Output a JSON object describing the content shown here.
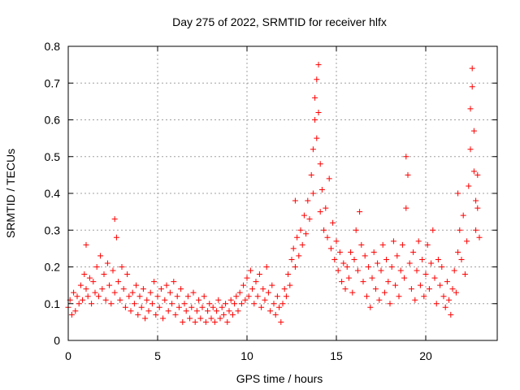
{
  "chart_data": {
    "type": "scatter",
    "title": "Day 275 of 2022, SRMTID for receiver hlfx",
    "xlabel": "GPS time / hours",
    "ylabel": "SRMTID / TECUs",
    "xlim": [
      0,
      24
    ],
    "ylim": [
      0,
      0.8
    ],
    "x_ticks": [
      0,
      5,
      10,
      15,
      20
    ],
    "x_tick_labels": [
      "0",
      "5",
      "10",
      "15",
      "20"
    ],
    "y_ticks": [
      0,
      0.1,
      0.2,
      0.3,
      0.4,
      0.5,
      0.6,
      0.7,
      0.8
    ],
    "y_tick_labels": [
      "0",
      "0.1",
      "0.2",
      "0.3",
      "0.4",
      "0.5",
      "0.6",
      "0.7",
      "0.8"
    ],
    "grid": true,
    "marker": "plus",
    "color": "#ff0000",
    "series": [
      {
        "name": "SRMTID",
        "points": [
          [
            0.0,
            0.09
          ],
          [
            0.1,
            0.11
          ],
          [
            0.2,
            0.07
          ],
          [
            0.3,
            0.13
          ],
          [
            0.4,
            0.08
          ],
          [
            0.5,
            0.12
          ],
          [
            0.6,
            0.1
          ],
          [
            0.7,
            0.15
          ],
          [
            0.8,
            0.11
          ],
          [
            0.9,
            0.18
          ],
          [
            1.0,
            0.26
          ],
          [
            1.0,
            0.14
          ],
          [
            1.1,
            0.12
          ],
          [
            1.2,
            0.17
          ],
          [
            1.3,
            0.1
          ],
          [
            1.4,
            0.16
          ],
          [
            1.5,
            0.13
          ],
          [
            1.6,
            0.2
          ],
          [
            1.7,
            0.12
          ],
          [
            1.8,
            0.23
          ],
          [
            1.9,
            0.14
          ],
          [
            2.0,
            0.18
          ],
          [
            2.1,
            0.11
          ],
          [
            2.2,
            0.21
          ],
          [
            2.3,
            0.15
          ],
          [
            2.4,
            0.1
          ],
          [
            2.5,
            0.19
          ],
          [
            2.6,
            0.13
          ],
          [
            2.6,
            0.33
          ],
          [
            2.7,
            0.28
          ],
          [
            2.8,
            0.16
          ],
          [
            2.9,
            0.11
          ],
          [
            3.0,
            0.2
          ],
          [
            3.1,
            0.14
          ],
          [
            3.2,
            0.09
          ],
          [
            3.3,
            0.18
          ],
          [
            3.4,
            0.12
          ],
          [
            3.5,
            0.08
          ],
          [
            3.6,
            0.13
          ],
          [
            3.7,
            0.1
          ],
          [
            3.8,
            0.15
          ],
          [
            3.9,
            0.07
          ],
          [
            4.0,
            0.12
          ],
          [
            4.1,
            0.09
          ],
          [
            4.2,
            0.14
          ],
          [
            4.3,
            0.06
          ],
          [
            4.4,
            0.11
          ],
          [
            4.5,
            0.08
          ],
          [
            4.6,
            0.13
          ],
          [
            4.7,
            0.1
          ],
          [
            4.8,
            0.16
          ],
          [
            4.9,
            0.07
          ],
          [
            5.0,
            0.12
          ],
          [
            5.1,
            0.09
          ],
          [
            5.2,
            0.14
          ],
          [
            5.3,
            0.06
          ],
          [
            5.4,
            0.11
          ],
          [
            5.5,
            0.15
          ],
          [
            5.6,
            0.08
          ],
          [
            5.7,
            0.13
          ],
          [
            5.8,
            0.1
          ],
          [
            5.9,
            0.16
          ],
          [
            6.0,
            0.07
          ],
          [
            6.1,
            0.12
          ],
          [
            6.2,
            0.09
          ],
          [
            6.3,
            0.14
          ],
          [
            6.4,
            0.05
          ],
          [
            6.5,
            0.1
          ],
          [
            6.6,
            0.08
          ],
          [
            6.7,
            0.12
          ],
          [
            6.8,
            0.06
          ],
          [
            6.9,
            0.09
          ],
          [
            7.0,
            0.13
          ],
          [
            7.1,
            0.05
          ],
          [
            7.2,
            0.08
          ],
          [
            7.3,
            0.11
          ],
          [
            7.4,
            0.06
          ],
          [
            7.5,
            0.09
          ],
          [
            7.6,
            0.12
          ],
          [
            7.7,
            0.05
          ],
          [
            7.8,
            0.08
          ],
          [
            7.9,
            0.1
          ],
          [
            8.0,
            0.06
          ],
          [
            8.1,
            0.09
          ],
          [
            8.2,
            0.05
          ],
          [
            8.3,
            0.08
          ],
          [
            8.4,
            0.11
          ],
          [
            8.5,
            0.06
          ],
          [
            8.6,
            0.09
          ],
          [
            8.7,
            0.07
          ],
          [
            8.8,
            0.1
          ],
          [
            8.9,
            0.05
          ],
          [
            9.0,
            0.08
          ],
          [
            9.1,
            0.11
          ],
          [
            9.2,
            0.07
          ],
          [
            9.3,
            0.1
          ],
          [
            9.4,
            0.12
          ],
          [
            9.5,
            0.08
          ],
          [
            9.6,
            0.13
          ],
          [
            9.7,
            0.1
          ],
          [
            9.8,
            0.15
          ],
          [
            9.9,
            0.11
          ],
          [
            10.0,
            0.17
          ],
          [
            10.1,
            0.12
          ],
          [
            10.2,
            0.19
          ],
          [
            10.3,
            0.14
          ],
          [
            10.4,
            0.1
          ],
          [
            10.5,
            0.16
          ],
          [
            10.6,
            0.12
          ],
          [
            10.7,
            0.18
          ],
          [
            10.8,
            0.09
          ],
          [
            10.9,
            0.14
          ],
          [
            11.0,
            0.11
          ],
          [
            11.1,
            0.2
          ],
          [
            11.2,
            0.13
          ],
          [
            11.3,
            0.08
          ],
          [
            11.4,
            0.15
          ],
          [
            11.5,
            0.1
          ],
          [
            11.6,
            0.07
          ],
          [
            11.7,
            0.12
          ],
          [
            11.8,
            0.09
          ],
          [
            11.9,
            0.05
          ],
          [
            12.0,
            0.1
          ],
          [
            12.1,
            0.14
          ],
          [
            12.2,
            0.12
          ],
          [
            12.3,
            0.18
          ],
          [
            12.4,
            0.15
          ],
          [
            12.5,
            0.22
          ],
          [
            12.6,
            0.25
          ],
          [
            12.7,
            0.2
          ],
          [
            12.7,
            0.38
          ],
          [
            12.8,
            0.28
          ],
          [
            12.9,
            0.23
          ],
          [
            13.0,
            0.3
          ],
          [
            13.1,
            0.26
          ],
          [
            13.2,
            0.34
          ],
          [
            13.3,
            0.29
          ],
          [
            13.4,
            0.38
          ],
          [
            13.5,
            0.33
          ],
          [
            13.6,
            0.45
          ],
          [
            13.7,
            0.52
          ],
          [
            13.7,
            0.4
          ],
          [
            13.8,
            0.6
          ],
          [
            13.8,
            0.66
          ],
          [
            13.9,
            0.71
          ],
          [
            13.9,
            0.55
          ],
          [
            14.0,
            0.75
          ],
          [
            14.0,
            0.62
          ],
          [
            14.1,
            0.48
          ],
          [
            14.1,
            0.35
          ],
          [
            14.2,
            0.41
          ],
          [
            14.3,
            0.3
          ],
          [
            14.4,
            0.36
          ],
          [
            14.5,
            0.28
          ],
          [
            14.6,
            0.44
          ],
          [
            14.7,
            0.25
          ],
          [
            14.8,
            0.32
          ],
          [
            14.9,
            0.22
          ],
          [
            15.0,
            0.27
          ],
          [
            15.1,
            0.19
          ],
          [
            15.2,
            0.24
          ],
          [
            15.3,
            0.16
          ],
          [
            15.4,
            0.21
          ],
          [
            15.5,
            0.14
          ],
          [
            15.6,
            0.2
          ],
          [
            15.7,
            0.17
          ],
          [
            15.8,
            0.24
          ],
          [
            15.9,
            0.13
          ],
          [
            16.0,
            0.22
          ],
          [
            16.1,
            0.3
          ],
          [
            16.2,
            0.19
          ],
          [
            16.3,
            0.35
          ],
          [
            16.4,
            0.26
          ],
          [
            16.5,
            0.16
          ],
          [
            16.6,
            0.23
          ],
          [
            16.7,
            0.12
          ],
          [
            16.8,
            0.2
          ],
          [
            16.9,
            0.09
          ],
          [
            17.0,
            0.17
          ],
          [
            17.1,
            0.24
          ],
          [
            17.2,
            0.14
          ],
          [
            17.3,
            0.21
          ],
          [
            17.4,
            0.11
          ],
          [
            17.5,
            0.19
          ],
          [
            17.6,
            0.26
          ],
          [
            17.7,
            0.13
          ],
          [
            17.8,
            0.22
          ],
          [
            17.9,
            0.16
          ],
          [
            18.0,
            0.1
          ],
          [
            18.1,
            0.2
          ],
          [
            18.2,
            0.27
          ],
          [
            18.3,
            0.15
          ],
          [
            18.4,
            0.23
          ],
          [
            18.5,
            0.12
          ],
          [
            18.6,
            0.19
          ],
          [
            18.7,
            0.26
          ],
          [
            18.8,
            0.17
          ],
          [
            18.9,
            0.36
          ],
          [
            18.9,
            0.5
          ],
          [
            19.0,
            0.45
          ],
          [
            19.1,
            0.21
          ],
          [
            19.2,
            0.14
          ],
          [
            19.3,
            0.24
          ],
          [
            19.4,
            0.11
          ],
          [
            19.5,
            0.19
          ],
          [
            19.6,
            0.27
          ],
          [
            19.7,
            0.15
          ],
          [
            19.8,
            0.22
          ],
          [
            19.9,
            0.12
          ],
          [
            20.0,
            0.18
          ],
          [
            20.1,
            0.26
          ],
          [
            20.2,
            0.14
          ],
          [
            20.3,
            0.21
          ],
          [
            20.4,
            0.3
          ],
          [
            20.5,
            0.17
          ],
          [
            20.6,
            0.1
          ],
          [
            20.7,
            0.22
          ],
          [
            20.8,
            0.15
          ],
          [
            20.9,
            0.2
          ],
          [
            21.0,
            0.12
          ],
          [
            21.1,
            0.09
          ],
          [
            21.2,
            0.16
          ],
          [
            21.3,
            0.11
          ],
          [
            21.4,
            0.07
          ],
          [
            21.5,
            0.14
          ],
          [
            21.6,
            0.19
          ],
          [
            21.7,
            0.13
          ],
          [
            21.8,
            0.24
          ],
          [
            21.8,
            0.4
          ],
          [
            21.9,
            0.3
          ],
          [
            22.0,
            0.22
          ],
          [
            22.1,
            0.34
          ],
          [
            22.2,
            0.18
          ],
          [
            22.3,
            0.27
          ],
          [
            22.4,
            0.42
          ],
          [
            22.5,
            0.52
          ],
          [
            22.5,
            0.63
          ],
          [
            22.6,
            0.74
          ],
          [
            22.6,
            0.69
          ],
          [
            22.7,
            0.57
          ],
          [
            22.7,
            0.46
          ],
          [
            22.8,
            0.38
          ],
          [
            22.8,
            0.3
          ],
          [
            22.9,
            0.45
          ],
          [
            22.9,
            0.36
          ],
          [
            23.0,
            0.28
          ]
        ]
      }
    ]
  }
}
